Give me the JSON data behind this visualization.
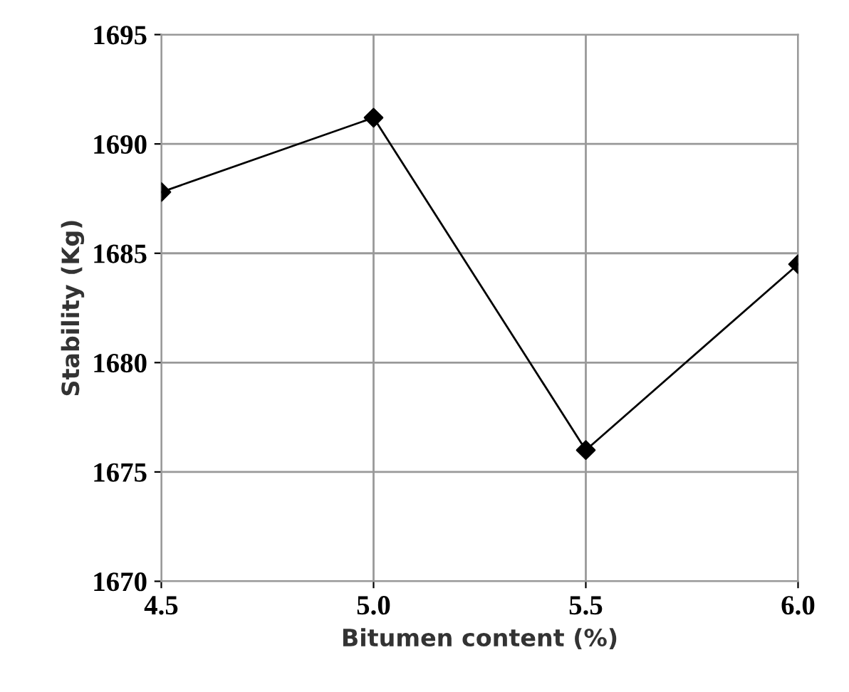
{
  "chart_data": {
    "type": "line",
    "xlabel": "Bitumen content (%)",
    "ylabel": "Stability (Kg)",
    "x": [
      4.5,
      5.0,
      5.5,
      6.0
    ],
    "series": [
      {
        "color": "#000000",
        "values": [
          1687.8,
          1691.2,
          1676.0,
          1684.5
        ]
      }
    ],
    "xlim": [
      4.5,
      6.0
    ],
    "xticks": [
      {
        "value": 4.5,
        "label": "4.5"
      },
      {
        "value": 5.0,
        "label": "5.0"
      },
      {
        "value": 5.5,
        "label": "5.5"
      },
      {
        "value": 6.0,
        "label": "6.0"
      }
    ],
    "ylim": [
      1670,
      1695
    ],
    "yticks": [
      1670,
      1675,
      1680,
      1685,
      1690,
      1695
    ],
    "grid": true,
    "marker": "diamond",
    "line_style": "solid"
  }
}
